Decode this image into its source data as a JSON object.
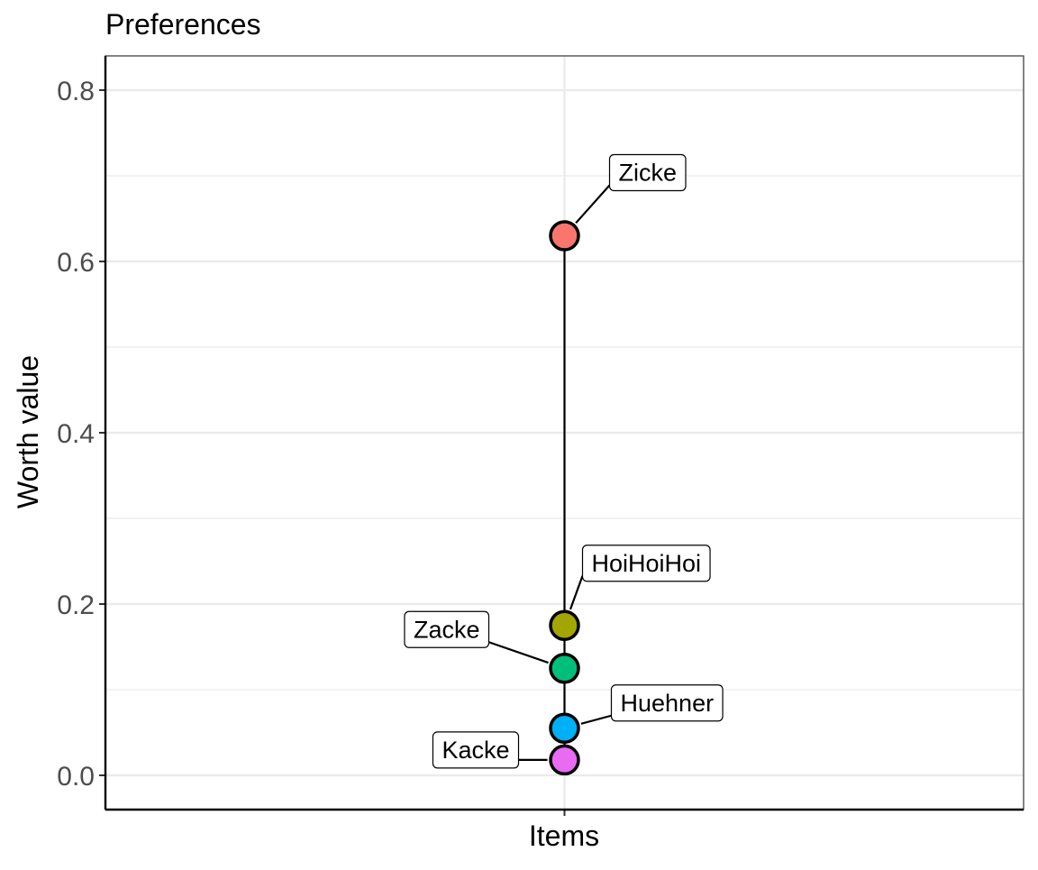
{
  "chart_data": {
    "type": "scatter",
    "title": "Preferences",
    "xlabel": "",
    "ylabel": "Worth value",
    "x_categories": [
      "Items"
    ],
    "ylim": [
      -0.04,
      0.84
    ],
    "yticks": [
      "0.0",
      "0.2",
      "0.4",
      "0.6",
      "0.8"
    ],
    "grid": true,
    "points": [
      {
        "label": "Zicke",
        "x": "Items",
        "y": 0.63,
        "color": "#F8766D"
      },
      {
        "label": "HoiHoiHoi",
        "x": "Items",
        "y": 0.175,
        "color": "#A3A500"
      },
      {
        "label": "Zacke",
        "x": "Items",
        "y": 0.125,
        "color": "#00BF7D"
      },
      {
        "label": "Huehner",
        "x": "Items",
        "y": 0.055,
        "color": "#00B0F6"
      },
      {
        "label": "Kacke",
        "x": "Items",
        "y": 0.018,
        "color": "#E76BF3"
      }
    ]
  }
}
